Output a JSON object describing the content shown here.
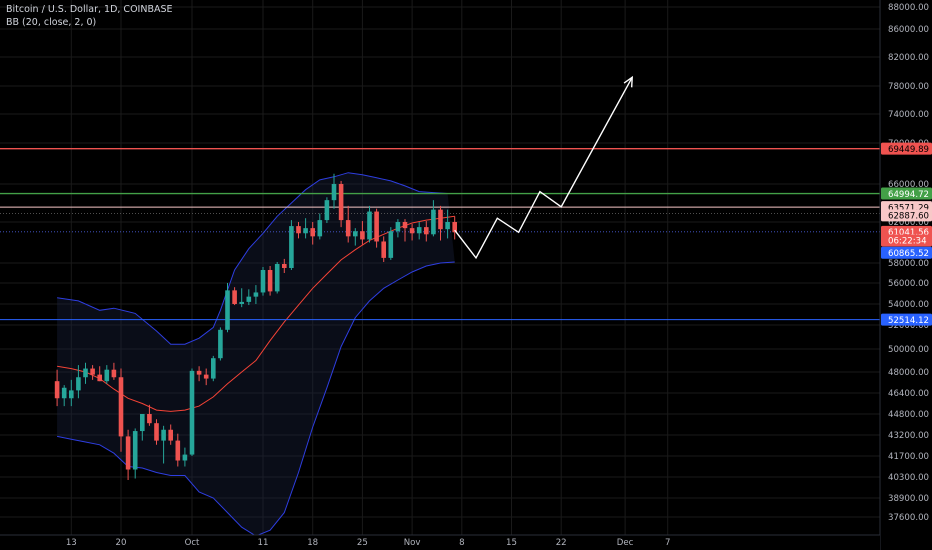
{
  "header": {
    "title": "Bitcoin / U.S. Dollar, 1D, COINBASE",
    "indicator": "BB (20, close, 2, 0)"
  },
  "colors": {
    "background": "#000000",
    "up": "#26a69a",
    "down": "#ef5350",
    "bb_band": "#2e3ee0",
    "bb_basis": "#f44336",
    "grid": "#1a1a1a"
  },
  "chart_data": {
    "type": "candlestick",
    "title": "Bitcoin / U.S. Dollar, 1D, COINBASE",
    "ylim": [
      36800,
      89200
    ],
    "y_ticks": [
      88000,
      86000,
      82000,
      78000,
      74000,
      70000,
      66000,
      62000,
      58000,
      56000,
      54000,
      52000,
      50000,
      48000,
      46400,
      44800,
      43200,
      41700,
      40300,
      38900,
      37600
    ],
    "x_ticks": [
      {
        "label": "13",
        "day": -17
      },
      {
        "label": "20",
        "day": -10
      },
      {
        "label": "Oct",
        "day": 0
      },
      {
        "label": "11",
        "day": 10
      },
      {
        "label": "18",
        "day": 17
      },
      {
        "label": "25",
        "day": 24
      },
      {
        "label": "Nov",
        "day": 31
      },
      {
        "label": "8",
        "day": 38
      },
      {
        "label": "15",
        "day": 45
      },
      {
        "label": "22",
        "day": 52
      },
      {
        "label": "Dec",
        "day": 61
      },
      {
        "label": "7",
        "day": 67
      }
    ],
    "candles": [
      {
        "day": -19,
        "o": 47300,
        "h": 48200,
        "l": 45400,
        "c": 46000
      },
      {
        "day": -18,
        "o": 46000,
        "h": 47000,
        "l": 45400,
        "c": 46800
      },
      {
        "day": -17,
        "o": 46000,
        "h": 47400,
        "l": 45400,
        "c": 46600
      },
      {
        "day": -16,
        "o": 46600,
        "h": 48600,
        "l": 46000,
        "c": 47600
      },
      {
        "day": -15,
        "o": 47600,
        "h": 48800,
        "l": 47100,
        "c": 48300
      },
      {
        "day": -14,
        "o": 48300,
        "h": 48600,
        "l": 47400,
        "c": 47800
      },
      {
        "day": -13,
        "o": 47800,
        "h": 48500,
        "l": 47300,
        "c": 47300
      },
      {
        "day": -12,
        "o": 47300,
        "h": 48600,
        "l": 47100,
        "c": 48200
      },
      {
        "day": -11,
        "o": 48200,
        "h": 48800,
        "l": 47400,
        "c": 47600
      },
      {
        "day": -10,
        "o": 47600,
        "h": 48300,
        "l": 42000,
        "c": 43100
      },
      {
        "day": -9,
        "o": 43100,
        "h": 43600,
        "l": 40100,
        "c": 40800
      },
      {
        "day": -8,
        "o": 40800,
        "h": 43700,
        "l": 40200,
        "c": 43500
      },
      {
        "day": -7,
        "o": 43500,
        "h": 44800,
        "l": 42800,
        "c": 44800
      },
      {
        "day": -6,
        "o": 44800,
        "h": 45500,
        "l": 43900,
        "c": 44100
      },
      {
        "day": -5,
        "o": 44100,
        "h": 44400,
        "l": 42500,
        "c": 42800
      },
      {
        "day": -4,
        "o": 42800,
        "h": 43900,
        "l": 41200,
        "c": 43600
      },
      {
        "day": -3,
        "o": 43600,
        "h": 44000,
        "l": 42500,
        "c": 42800
      },
      {
        "day": -2,
        "o": 42800,
        "h": 43300,
        "l": 41000,
        "c": 41400
      },
      {
        "day": -1,
        "o": 41400,
        "h": 42300,
        "l": 41000,
        "c": 41800
      },
      {
        "day": 0,
        "o": 41800,
        "h": 48300,
        "l": 41700,
        "c": 48100
      },
      {
        "day": 1,
        "o": 48100,
        "h": 48500,
        "l": 47300,
        "c": 47800
      },
      {
        "day": 2,
        "o": 47800,
        "h": 48300,
        "l": 47000,
        "c": 47500
      },
      {
        "day": 3,
        "o": 47500,
        "h": 49400,
        "l": 47300,
        "c": 49200
      },
      {
        "day": 4,
        "o": 49200,
        "h": 51800,
        "l": 49000,
        "c": 51600
      },
      {
        "day": 5,
        "o": 51600,
        "h": 56000,
        "l": 51400,
        "c": 55300
      },
      {
        "day": 6,
        "o": 55300,
        "h": 55600,
        "l": 53900,
        "c": 54000
      },
      {
        "day": 7,
        "o": 54000,
        "h": 55500,
        "l": 53700,
        "c": 54200
      },
      {
        "day": 8,
        "o": 54200,
        "h": 55400,
        "l": 53900,
        "c": 54700
      },
      {
        "day": 9,
        "o": 54700,
        "h": 55800,
        "l": 54000,
        "c": 55100
      },
      {
        "day": 10,
        "o": 55100,
        "h": 57600,
        "l": 54800,
        "c": 57300
      },
      {
        "day": 11,
        "o": 57300,
        "h": 57700,
        "l": 54800,
        "c": 55200
      },
      {
        "day": 12,
        "o": 55200,
        "h": 58100,
        "l": 55000,
        "c": 57900
      },
      {
        "day": 13,
        "o": 57900,
        "h": 58400,
        "l": 57000,
        "c": 57500
      },
      {
        "day": 14,
        "o": 57500,
        "h": 62200,
        "l": 57300,
        "c": 61600
      },
      {
        "day": 15,
        "o": 61600,
        "h": 62000,
        "l": 60400,
        "c": 60900
      },
      {
        "day": 16,
        "o": 60900,
        "h": 62400,
        "l": 60400,
        "c": 61400
      },
      {
        "day": 17,
        "o": 61400,
        "h": 62000,
        "l": 59800,
        "c": 60600
      },
      {
        "day": 18,
        "o": 60600,
        "h": 62900,
        "l": 60300,
        "c": 62200
      },
      {
        "day": 19,
        "o": 62200,
        "h": 64600,
        "l": 61900,
        "c": 64300
      },
      {
        "day": 20,
        "o": 64300,
        "h": 67000,
        "l": 63400,
        "c": 66000
      },
      {
        "day": 21,
        "o": 66000,
        "h": 66300,
        "l": 61500,
        "c": 62200
      },
      {
        "day": 22,
        "o": 62200,
        "h": 63700,
        "l": 60000,
        "c": 60600
      },
      {
        "day": 23,
        "o": 60600,
        "h": 61400,
        "l": 59700,
        "c": 61100
      },
      {
        "day": 24,
        "o": 61100,
        "h": 62100,
        "l": 59800,
        "c": 60300
      },
      {
        "day": 25,
        "o": 60300,
        "h": 63700,
        "l": 60000,
        "c": 63100
      },
      {
        "day": 26,
        "o": 63100,
        "h": 63400,
        "l": 59500,
        "c": 60100
      },
      {
        "day": 27,
        "o": 60100,
        "h": 60600,
        "l": 58100,
        "c": 58500
      },
      {
        "day": 28,
        "o": 58500,
        "h": 61500,
        "l": 58300,
        "c": 61100
      },
      {
        "day": 29,
        "o": 61100,
        "h": 62300,
        "l": 60500,
        "c": 62000
      },
      {
        "day": 30,
        "o": 62000,
        "h": 62300,
        "l": 60100,
        "c": 61400
      },
      {
        "day": 31,
        "o": 61400,
        "h": 61800,
        "l": 60200,
        "c": 60900
      },
      {
        "day": 32,
        "o": 60900,
        "h": 62000,
        "l": 60300,
        "c": 61500
      },
      {
        "day": 33,
        "o": 61500,
        "h": 62100,
        "l": 60100,
        "c": 60800
      },
      {
        "day": 34,
        "o": 60800,
        "h": 64300,
        "l": 60600,
        "c": 63300
      },
      {
        "day": 35,
        "o": 63300,
        "h": 63700,
        "l": 60200,
        "c": 61300
      },
      {
        "day": 36,
        "o": 61300,
        "h": 63300,
        "l": 60400,
        "c": 62000
      },
      {
        "day": 37,
        "o": 62000,
        "h": 62600,
        "l": 60300,
        "c": 61000
      }
    ],
    "bb_upper": [
      [
        -19,
        54600
      ],
      [
        -16,
        54300
      ],
      [
        -13,
        53400
      ],
      [
        -11,
        53600
      ],
      [
        -8,
        53100
      ],
      [
        -5,
        51500
      ],
      [
        -3,
        50400
      ],
      [
        -1,
        50400
      ],
      [
        1,
        50900
      ],
      [
        3,
        51800
      ],
      [
        4,
        53400
      ],
      [
        6,
        57300
      ],
      [
        8,
        59400
      ],
      [
        10,
        60900
      ],
      [
        12,
        62600
      ],
      [
        14,
        64000
      ],
      [
        16,
        65400
      ],
      [
        18,
        66400
      ],
      [
        20,
        66700
      ],
      [
        22,
        67100
      ],
      [
        24,
        66900
      ],
      [
        26,
        66600
      ],
      [
        28,
        66300
      ],
      [
        30,
        65800
      ],
      [
        32,
        65200
      ],
      [
        34,
        65100
      ],
      [
        36,
        65000
      ]
    ],
    "bb_basis": [
      [
        -19,
        48500
      ],
      [
        -17,
        48300
      ],
      [
        -15,
        48000
      ],
      [
        -13,
        47500
      ],
      [
        -11,
        46700
      ],
      [
        -9,
        46000
      ],
      [
        -7,
        45600
      ],
      [
        -5,
        45100
      ],
      [
        -3,
        45000
      ],
      [
        -1,
        45100
      ],
      [
        1,
        45400
      ],
      [
        3,
        46100
      ],
      [
        5,
        47100
      ],
      [
        7,
        48000
      ],
      [
        9,
        49000
      ],
      [
        11,
        50700
      ],
      [
        13,
        52300
      ],
      [
        15,
        53900
      ],
      [
        17,
        55500
      ],
      [
        19,
        56900
      ],
      [
        21,
        58300
      ],
      [
        23,
        59300
      ],
      [
        25,
        60200
      ],
      [
        27,
        60800
      ],
      [
        29,
        61400
      ],
      [
        31,
        61900
      ],
      [
        33,
        62200
      ],
      [
        35,
        62400
      ],
      [
        37,
        62600
      ]
    ],
    "bb_lower": [
      [
        -19,
        43100
      ],
      [
        -17,
        42900
      ],
      [
        -15,
        42700
      ],
      [
        -13,
        42500
      ],
      [
        -11,
        41900
      ],
      [
        -9,
        41000
      ],
      [
        -7,
        40900
      ],
      [
        -5,
        40600
      ],
      [
        -3,
        40400
      ],
      [
        -1,
        40400
      ],
      [
        1,
        39300
      ],
      [
        3,
        38900
      ],
      [
        5,
        37900
      ],
      [
        7,
        36900
      ],
      [
        9,
        36300
      ],
      [
        11,
        36700
      ],
      [
        13,
        37900
      ],
      [
        15,
        40600
      ],
      [
        17,
        43800
      ],
      [
        19,
        46800
      ],
      [
        21,
        50200
      ],
      [
        23,
        52700
      ],
      [
        25,
        54300
      ],
      [
        27,
        55500
      ],
      [
        29,
        56300
      ],
      [
        31,
        57100
      ],
      [
        33,
        57700
      ],
      [
        35,
        58000
      ],
      [
        37,
        58100
      ]
    ],
    "horizontal_lines": [
      {
        "name": "resistance-red",
        "y": 69449.89,
        "color": "#ef5350",
        "width": 1.4
      },
      {
        "name": "resistance-green",
        "y": 64994.72,
        "color": "#43a047",
        "width": 1.4
      },
      {
        "name": "level-pink",
        "y": 63571.29,
        "color": "#f8c8c8",
        "width": 1
      },
      {
        "name": "level-dotted-a",
        "y": 62887.6,
        "color": "#5a5a5a",
        "width": 0.8,
        "dash": "1,2"
      },
      {
        "name": "level-dotted-b",
        "y": 61041.56,
        "color": "#4a5cd8",
        "width": 0.8,
        "dash": "1,2"
      },
      {
        "name": "support-blue",
        "y": 52514.12,
        "color": "#2962ff",
        "width": 1
      }
    ],
    "projection": [
      [
        37,
        61200
      ],
      [
        40,
        58500
      ],
      [
        43,
        62400
      ],
      [
        46,
        61000
      ],
      [
        49,
        65200
      ],
      [
        52,
        63600
      ],
      [
        62,
        79200
      ]
    ],
    "price_badges": [
      {
        "text": "69449.89",
        "y": 69449.89,
        "bg": "#ef5350",
        "fg": "#000000"
      },
      {
        "text": "64994.72",
        "y": 64994.72,
        "bg": "#43a047",
        "fg": "#ffffff"
      },
      {
        "text": "63571.29",
        "y": 63571.29,
        "bg": "#f8c8c8",
        "fg": "#000000"
      },
      {
        "text": "62887.60",
        "y": 62700,
        "bg": "#f8c8c8",
        "fg": "#000000"
      },
      {
        "text": "61041.56",
        "y": 61041.56,
        "bg": "#ef5350",
        "fg": "#ffffff"
      },
      {
        "text": "06:22:34",
        "y": 60200,
        "bg": "#ef5350",
        "fg": "#ffffff"
      },
      {
        "text": "60865.52",
        "y": 59000,
        "bg": "#2962ff",
        "fg": "#ffffff"
      },
      {
        "text": "52514.12",
        "y": 52514.12,
        "bg": "#2962ff",
        "fg": "#ffffff"
      }
    ]
  }
}
